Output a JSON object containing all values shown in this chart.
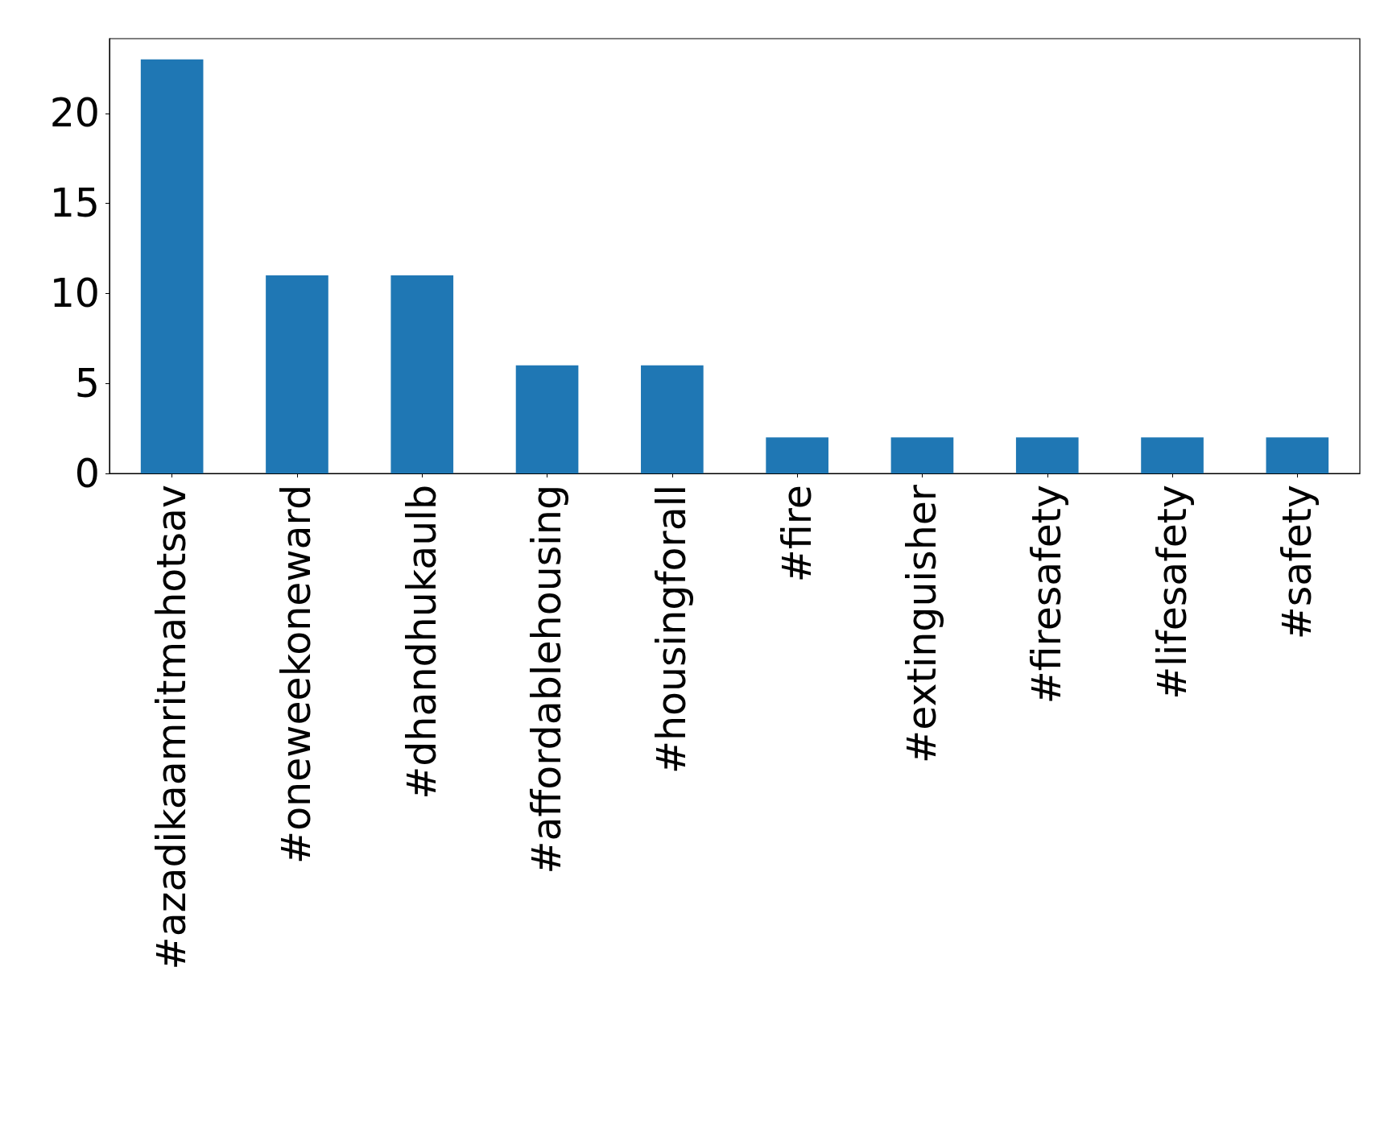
{
  "chart_data": {
    "type": "bar",
    "categories": [
      "#azadikaamritmahotsav",
      "#oneweekoneward",
      "#dhandhukaulb",
      "#affordablehousing",
      "#housingforall",
      "#fire",
      "#extinguisher",
      "#firesafety",
      "#lifesafety",
      "#safety"
    ],
    "values": [
      23,
      11,
      11,
      6,
      6,
      2,
      2,
      2,
      2,
      2
    ],
    "color": "#1f77b4",
    "ylim": [
      0,
      24.15
    ],
    "yticks": [
      0,
      5,
      10,
      15,
      20
    ]
  }
}
